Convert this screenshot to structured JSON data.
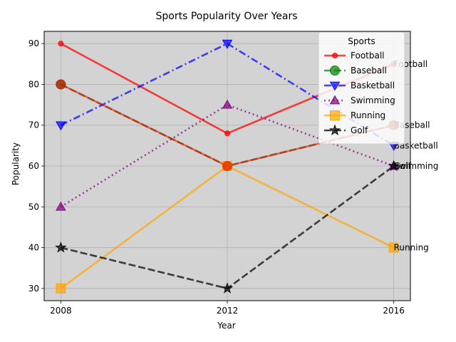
{
  "chart_data": {
    "type": "line",
    "title": "Sports Popularity Over Years",
    "xlabel": "Year",
    "ylabel": "Popularity",
    "x": [
      2008,
      2012,
      2016
    ],
    "xticks": [
      "2008",
      "2012",
      "2016"
    ],
    "yticks": [
      30,
      40,
      50,
      60,
      70,
      80,
      90
    ],
    "xlim": [
      2007.6,
      2016.4
    ],
    "ylim": [
      27,
      93
    ],
    "grid": true,
    "legend": {
      "title": "Sports",
      "placement": "top-right"
    },
    "series": [
      {
        "name": "Football",
        "values": [
          90,
          68,
          85
        ],
        "color": "#ff0000",
        "marker": "circle",
        "linestyle": "solid"
      },
      {
        "name": "Baseball",
        "values": [
          80,
          60,
          70
        ],
        "color": "#008000",
        "marker": "circle",
        "linestyle": "dashed"
      },
      {
        "name": "Basketball",
        "values": [
          70,
          90,
          65
        ],
        "color": "#0000ff",
        "marker": "triangle-down",
        "linestyle": "dashdot"
      },
      {
        "name": "Swimming",
        "values": [
          50,
          75,
          60
        ],
        "color": "#800080",
        "marker": "triangle-up",
        "linestyle": "dotted"
      },
      {
        "name": "Running",
        "values": [
          30,
          60,
          40
        ],
        "color": "#ffa500",
        "marker": "square",
        "linestyle": "solid"
      },
      {
        "name": "Golf",
        "values": [
          40,
          30,
          60
        ],
        "color": "#000000",
        "marker": "star",
        "linestyle": "dashed"
      }
    ],
    "overlay": {
      "values": [
        80,
        60,
        70
      ],
      "color": "#ff0000"
    }
  }
}
